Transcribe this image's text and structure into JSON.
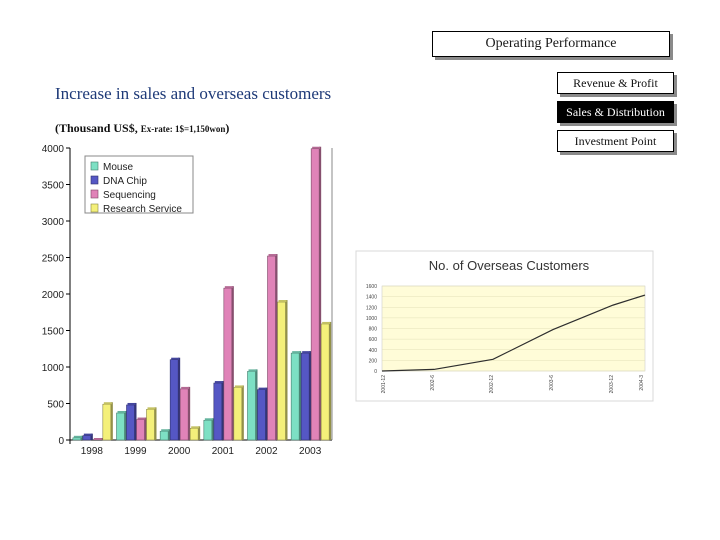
{
  "header": {
    "title": "Operating Performance"
  },
  "nav": [
    {
      "label": "Revenue & Profit",
      "active": false
    },
    {
      "label": "Sales & Distribution",
      "active": true
    },
    {
      "label": "Investment Point",
      "active": false
    }
  ],
  "headline": "Increase in sales and overseas customers",
  "unit_main": "(Thousand US$, ",
  "unit_rate": "Ex-rate: 1$=1,150won",
  "unit_close": ")",
  "colors": {
    "mouse": "#7de0c4",
    "dna_chip": "#5557c4",
    "sequencing": "#e083b8",
    "research_service": "#f4f07a",
    "line": "#2e2e2e",
    "inset_bg": "#fffcd8"
  },
  "chart_data": [
    {
      "type": "bar",
      "categories": [
        "1998",
        "1999",
        "2000",
        "2001",
        "2002",
        "2003"
      ],
      "series": [
        {
          "name": "Mouse",
          "values": [
            30,
            370,
            120,
            270,
            940,
            1190
          ]
        },
        {
          "name": "DNA Chip",
          "values": [
            60,
            480,
            1100,
            780,
            690,
            1190
          ]
        },
        {
          "name": "Sequencing",
          "values": [
            0,
            280,
            700,
            2080,
            2520,
            3990
          ]
        },
        {
          "name": "Research Service",
          "values": [
            490,
            420,
            160,
            720,
            1890,
            1590
          ]
        }
      ],
      "yticks": [
        0,
        500,
        1000,
        1500,
        2000,
        2500,
        3000,
        3500,
        4000
      ],
      "ylim": [
        0,
        4000
      ],
      "legend": "top-left"
    },
    {
      "type": "line",
      "title": "No. of Overseas Customers",
      "x": [
        "2001-12",
        "2002-6",
        "2002-12",
        "2003-6",
        "2003-12",
        "2004-3"
      ],
      "values": [
        0,
        30,
        220,
        780,
        1240,
        1430
      ],
      "yticks": [
        0,
        200,
        400,
        600,
        800,
        1000,
        1200,
        1400,
        1600
      ],
      "ylim": [
        0,
        1600
      ]
    }
  ]
}
